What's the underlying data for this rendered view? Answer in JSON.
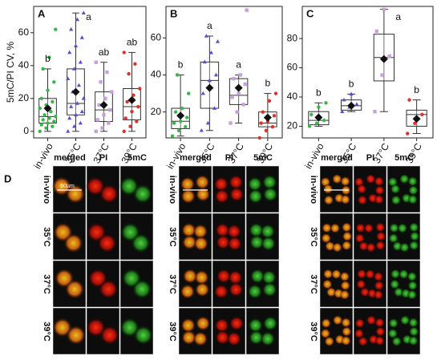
{
  "chart_data": [
    {
      "type": "box",
      "panel": "A",
      "y_label": "5mC/PI CV, %",
      "ylim": [
        -4,
        76
      ],
      "yticks": [
        0,
        20,
        40,
        60
      ],
      "categories": [
        "in-vivo",
        "35°C",
        "37°C",
        "39°C"
      ],
      "boxes": [
        {
          "color": "#3cb44b",
          "whisker_low": 0,
          "q1": 5,
          "median": 9,
          "q3": 20,
          "whisker_high": 38,
          "mean": 14,
          "letter": "b",
          "points": [
            0,
            2,
            3,
            4,
            5,
            6,
            7,
            8,
            9,
            10,
            12,
            14,
            16,
            18,
            20,
            25,
            30,
            38,
            45,
            62
          ]
        },
        {
          "color": "#5a4fcf",
          "whisker_low": 0,
          "q1": 10,
          "median": 17,
          "q3": 38,
          "whisker_high": 72,
          "mean": 24,
          "letter": "a",
          "points": [
            0,
            3,
            5,
            8,
            10,
            12,
            15,
            17,
            20,
            24,
            28,
            32,
            38,
            42,
            48,
            52,
            57,
            62,
            68,
            72
          ]
        },
        {
          "color": "#c9a0dc",
          "whisker_low": 0,
          "q1": 6,
          "median": 13,
          "q3": 24,
          "whisker_high": 42,
          "mean": 16,
          "letter": "ab",
          "points": [
            0,
            2,
            5,
            7,
            10,
            13,
            16,
            20,
            24,
            30,
            36,
            42
          ]
        },
        {
          "color": "#e0302a",
          "whisker_low": 0,
          "q1": 7,
          "median": 15,
          "q3": 26,
          "whisker_high": 48,
          "mean": 19,
          "letter": "ab",
          "points": [
            0,
            3,
            6,
            8,
            12,
            15,
            18,
            22,
            26,
            35,
            41,
            48
          ]
        }
      ]
    },
    {
      "type": "box",
      "panel": "B",
      "ylim": [
        6,
        77
      ],
      "yticks": [
        20,
        40,
        60
      ],
      "categories": [
        "in-vivo",
        "35°C",
        "37°C",
        "39°C"
      ],
      "boxes": [
        {
          "color": "#3cb44b",
          "whisker_low": 7,
          "q1": 11,
          "median": 15,
          "q3": 22,
          "whisker_high": 40,
          "mean": 18,
          "letter": "b",
          "points": [
            7,
            10,
            12,
            14,
            15,
            17,
            20,
            22,
            30,
            40
          ]
        },
        {
          "color": "#5a4fcf",
          "whisker_low": 10,
          "q1": 22,
          "median": 37,
          "q3": 47,
          "whisker_high": 61,
          "mean": 33,
          "letter": "a",
          "points": [
            10,
            14,
            22,
            30,
            37,
            40,
            47,
            52,
            58,
            61
          ]
        },
        {
          "color": "#c9a0dc",
          "whisker_low": 14,
          "q1": 24,
          "median": 29,
          "q3": 38,
          "whisker_high": 40,
          "mean": 33,
          "letter": "a",
          "points": [
            14,
            20,
            24,
            28,
            30,
            35,
            38,
            40,
            75
          ]
        },
        {
          "color": "#e0302a",
          "whisker_low": 6,
          "q1": 12,
          "median": 14,
          "q3": 20,
          "whisker_high": 30,
          "mean": 17,
          "letter": "b",
          "points": [
            6,
            10,
            12,
            14,
            15,
            18,
            20,
            26,
            30
          ]
        }
      ]
    },
    {
      "type": "box",
      "panel": "C",
      "ylim": [
        12,
        102
      ],
      "yticks": [
        20,
        40,
        60,
        80
      ],
      "categories": [
        "in-vivo",
        "35°C",
        "37°C",
        "39°C"
      ],
      "boxes": [
        {
          "color": "#3cb44b",
          "whisker_low": 20,
          "q1": 21,
          "median": 24,
          "q3": 30,
          "whisker_high": 36,
          "mean": 26,
          "letter": "b",
          "points": [
            20,
            22,
            24,
            28,
            33,
            36
          ]
        },
        {
          "color": "#5a4fcf",
          "whisker_low": 30,
          "q1": 31,
          "median": 34,
          "q3": 38,
          "whisker_high": 42,
          "mean": 34,
          "letter": "b",
          "points": [
            30,
            33,
            35,
            38,
            42
          ]
        },
        {
          "color": "#c9a0dc",
          "whisker_low": 30,
          "q1": 51,
          "median": 67,
          "q3": 83,
          "whisker_high": 100,
          "mean": 66,
          "letter": "a",
          "points": [
            30,
            55,
            68,
            85,
            100
          ]
        },
        {
          "color": "#e0302a",
          "whisker_low": 15,
          "q1": 20,
          "median": 28,
          "q3": 31,
          "whisker_high": 38,
          "mean": 25,
          "letter": "b",
          "points": [
            15,
            22,
            28,
            38
          ]
        }
      ]
    }
  ],
  "panel_d": {
    "label": "D",
    "columns": [
      "merged",
      "PI",
      "5mC"
    ],
    "rows": [
      "in-vivo",
      "35°C",
      "37°C",
      "39°C"
    ],
    "scale_bar": "50µm"
  }
}
